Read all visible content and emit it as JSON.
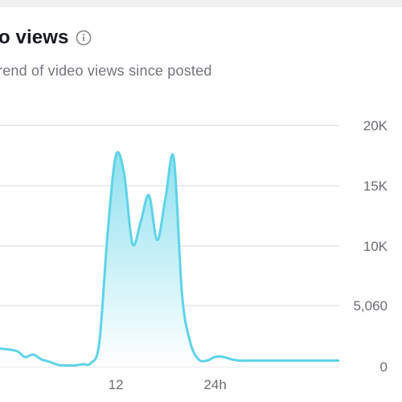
{
  "header": {
    "title": "o views",
    "subtitle": "rend of video views since posted",
    "info_icon": "info-icon"
  },
  "colors": {
    "line": "#5ed3e8",
    "fill_top": "#8fe1ef",
    "fill_bottom": "#ffffff",
    "grid": "#d9d9dc",
    "axis_text": "#6b6d73",
    "title": "#161823",
    "subtitle": "#73757c"
  },
  "chart_data": {
    "type": "area",
    "title": "",
    "xlabel": "",
    "ylabel": "",
    "y_axis_side": "right",
    "ylim": [
      0,
      20000
    ],
    "yticks": [
      {
        "value": 0,
        "label": "0"
      },
      {
        "value": 5060,
        "label": "5,060"
      },
      {
        "value": 10000,
        "label": "10K"
      },
      {
        "value": 15000,
        "label": "15K"
      },
      {
        "value": 20000,
        "label": "20K"
      }
    ],
    "xlim": [
      -2,
      39
    ],
    "xticks": [
      {
        "value": 12,
        "label": "12"
      },
      {
        "value": 24,
        "label": "24h"
      }
    ],
    "grid": true,
    "series": [
      {
        "x": [
          -2,
          0,
          1,
          2,
          3,
          4,
          5,
          6,
          7,
          8,
          9,
          10,
          11,
          12,
          13,
          14,
          15,
          16,
          17,
          18,
          19,
          20,
          21,
          22,
          23,
          24,
          25,
          26,
          27,
          28,
          29,
          30,
          31,
          32,
          33,
          34,
          35,
          36,
          37,
          38,
          39
        ],
        "values": [
          1500,
          1300,
          800,
          1000,
          600,
          400,
          150,
          100,
          100,
          200,
          300,
          2000,
          11000,
          17500,
          16000,
          10200,
          12000,
          14200,
          10500,
          14000,
          17300,
          6000,
          2000,
          600,
          500,
          800,
          800,
          600,
          500,
          500,
          500,
          500,
          500,
          500,
          500,
          500,
          500,
          500,
          500,
          500,
          500
        ]
      }
    ]
  }
}
